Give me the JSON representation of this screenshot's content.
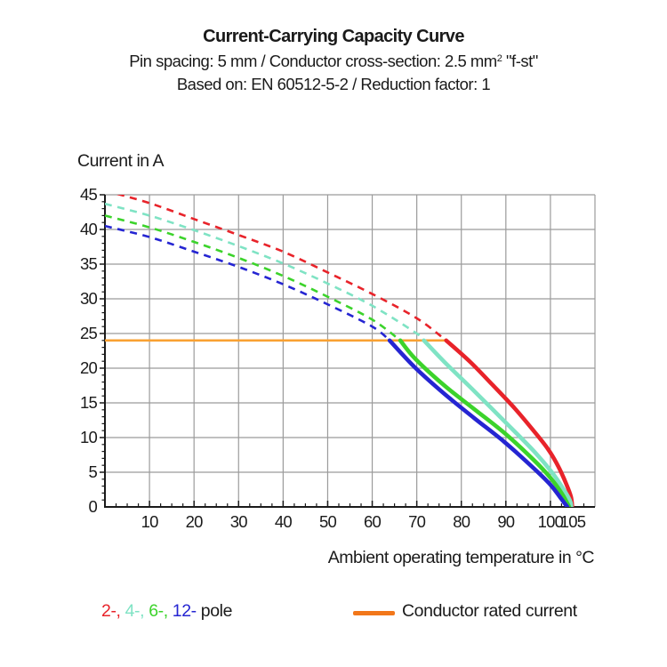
{
  "header": {
    "title": "Current-Carrying Capacity Curve",
    "subtitle1_pre": "Pin spacing: 5 mm / Conductor cross-section: 2.5 mm",
    "subtitle1_sup": "2",
    "subtitle1_post": " \"f-st\"",
    "subtitle2": "Based on: EN 60512-5-2 / Reduction factor: 1"
  },
  "chart_data": {
    "type": "line",
    "title": "Current-Carrying Capacity Curve",
    "xlabel": "Ambient operating temperature in °C",
    "ylabel": "Current in A",
    "xlim": [
      0,
      110
    ],
    "ylim": [
      0,
      45
    ],
    "x_ticks": [
      10,
      20,
      30,
      40,
      50,
      60,
      70,
      80,
      90,
      100,
      105
    ],
    "x_gridlines": [
      10,
      20,
      30,
      40,
      50,
      60,
      70,
      80,
      90,
      100
    ],
    "x_minor_step": 2.5,
    "y_ticks": [
      0,
      5,
      10,
      15,
      20,
      25,
      30,
      35,
      40,
      45
    ],
    "y_gridlines": [
      5,
      10,
      15,
      20,
      25,
      30,
      35,
      40,
      45
    ],
    "y_minor_step": 1,
    "grid": true,
    "legend_position": "bottom",
    "rated_current": {
      "value": 24,
      "x_start": 0,
      "x_end": 76.6,
      "label": "Conductor rated current"
    },
    "series": [
      {
        "name": "2-pole",
        "color": "#E8232A",
        "dashed": [
          [
            0,
            45.6
          ],
          [
            10,
            43.8
          ],
          [
            20,
            41.5
          ],
          [
            30,
            39.2
          ],
          [
            40,
            36.8
          ],
          [
            50,
            33.8
          ],
          [
            60,
            30.7
          ],
          [
            70,
            27.2
          ],
          [
            76.6,
            24
          ]
        ],
        "solid": [
          [
            76.6,
            24
          ],
          [
            82,
            20.9
          ],
          [
            87,
            17.6
          ],
          [
            92,
            14.2
          ],
          [
            96.2,
            11.0
          ],
          [
            99.5,
            8.3
          ],
          [
            101.8,
            5.8
          ],
          [
            103.5,
            3.4
          ],
          [
            104.6,
            1.5
          ],
          [
            104.9,
            0
          ]
        ]
      },
      {
        "name": "4-pole",
        "color": "#7FE3C4",
        "dashed": [
          [
            0,
            43.7
          ],
          [
            10,
            42.0
          ],
          [
            20,
            39.9
          ],
          [
            30,
            37.6
          ],
          [
            40,
            35.1
          ],
          [
            50,
            32.2
          ],
          [
            60,
            29.0
          ],
          [
            70,
            25.0
          ],
          [
            71.6,
            24
          ]
        ],
        "solid": [
          [
            71.6,
            24
          ],
          [
            76.2,
            20.9
          ],
          [
            82.9,
            16.7
          ],
          [
            89.6,
            12.4
          ],
          [
            96.2,
            8.1
          ],
          [
            100.2,
            5.1
          ],
          [
            102.8,
            2.7
          ],
          [
            104.4,
            0.9
          ],
          [
            104.7,
            0
          ]
        ]
      },
      {
        "name": "6-pole",
        "color": "#3CD32B",
        "dashed": [
          [
            0,
            42.0
          ],
          [
            10,
            40.3
          ],
          [
            20,
            38.2
          ],
          [
            30,
            35.9
          ],
          [
            40,
            33.3
          ],
          [
            50,
            30.3
          ],
          [
            60,
            27.0
          ],
          [
            66.3,
            24
          ]
        ],
        "solid": [
          [
            66.3,
            24
          ],
          [
            69.6,
            21.4
          ],
          [
            76.2,
            17.5
          ],
          [
            82.9,
            14.1
          ],
          [
            89.6,
            10.7
          ],
          [
            96.2,
            6.8
          ],
          [
            100,
            4.2
          ],
          [
            102.6,
            1.9
          ],
          [
            104.2,
            0
          ]
        ]
      },
      {
        "name": "12-pole",
        "color": "#2525D2",
        "dashed": [
          [
            0,
            40.5
          ],
          [
            10,
            38.9
          ],
          [
            20,
            36.8
          ],
          [
            30,
            34.6
          ],
          [
            40,
            32.1
          ],
          [
            50,
            29.2
          ],
          [
            60,
            26.0
          ],
          [
            63.9,
            24
          ]
        ],
        "solid": [
          [
            63.9,
            24
          ],
          [
            69.6,
            20.1
          ],
          [
            76.2,
            16.3
          ],
          [
            82.9,
            12.8
          ],
          [
            89.6,
            9.4
          ],
          [
            96.2,
            5.6
          ],
          [
            100,
            3.2
          ],
          [
            102.4,
            1.2
          ],
          [
            103.8,
            0
          ]
        ]
      }
    ]
  },
  "legend": {
    "poles": [
      {
        "label": "2-,",
        "color": "#E8232A"
      },
      {
        "label": "4-,",
        "color": "#7FE3C4"
      },
      {
        "label": "6-,",
        "color": "#3CD32B"
      },
      {
        "label": "12-",
        "color": "#2525D2"
      }
    ],
    "pole_suffix": " pole",
    "rated_label": "Conductor rated current"
  },
  "colors": {
    "background": "#FFFFFF",
    "text": "#1A1A1A",
    "grid": "#9B9B9B",
    "axis": "#1A1A1A",
    "rated_line": "#F9A132",
    "rated_swatch": "#F2771A"
  }
}
